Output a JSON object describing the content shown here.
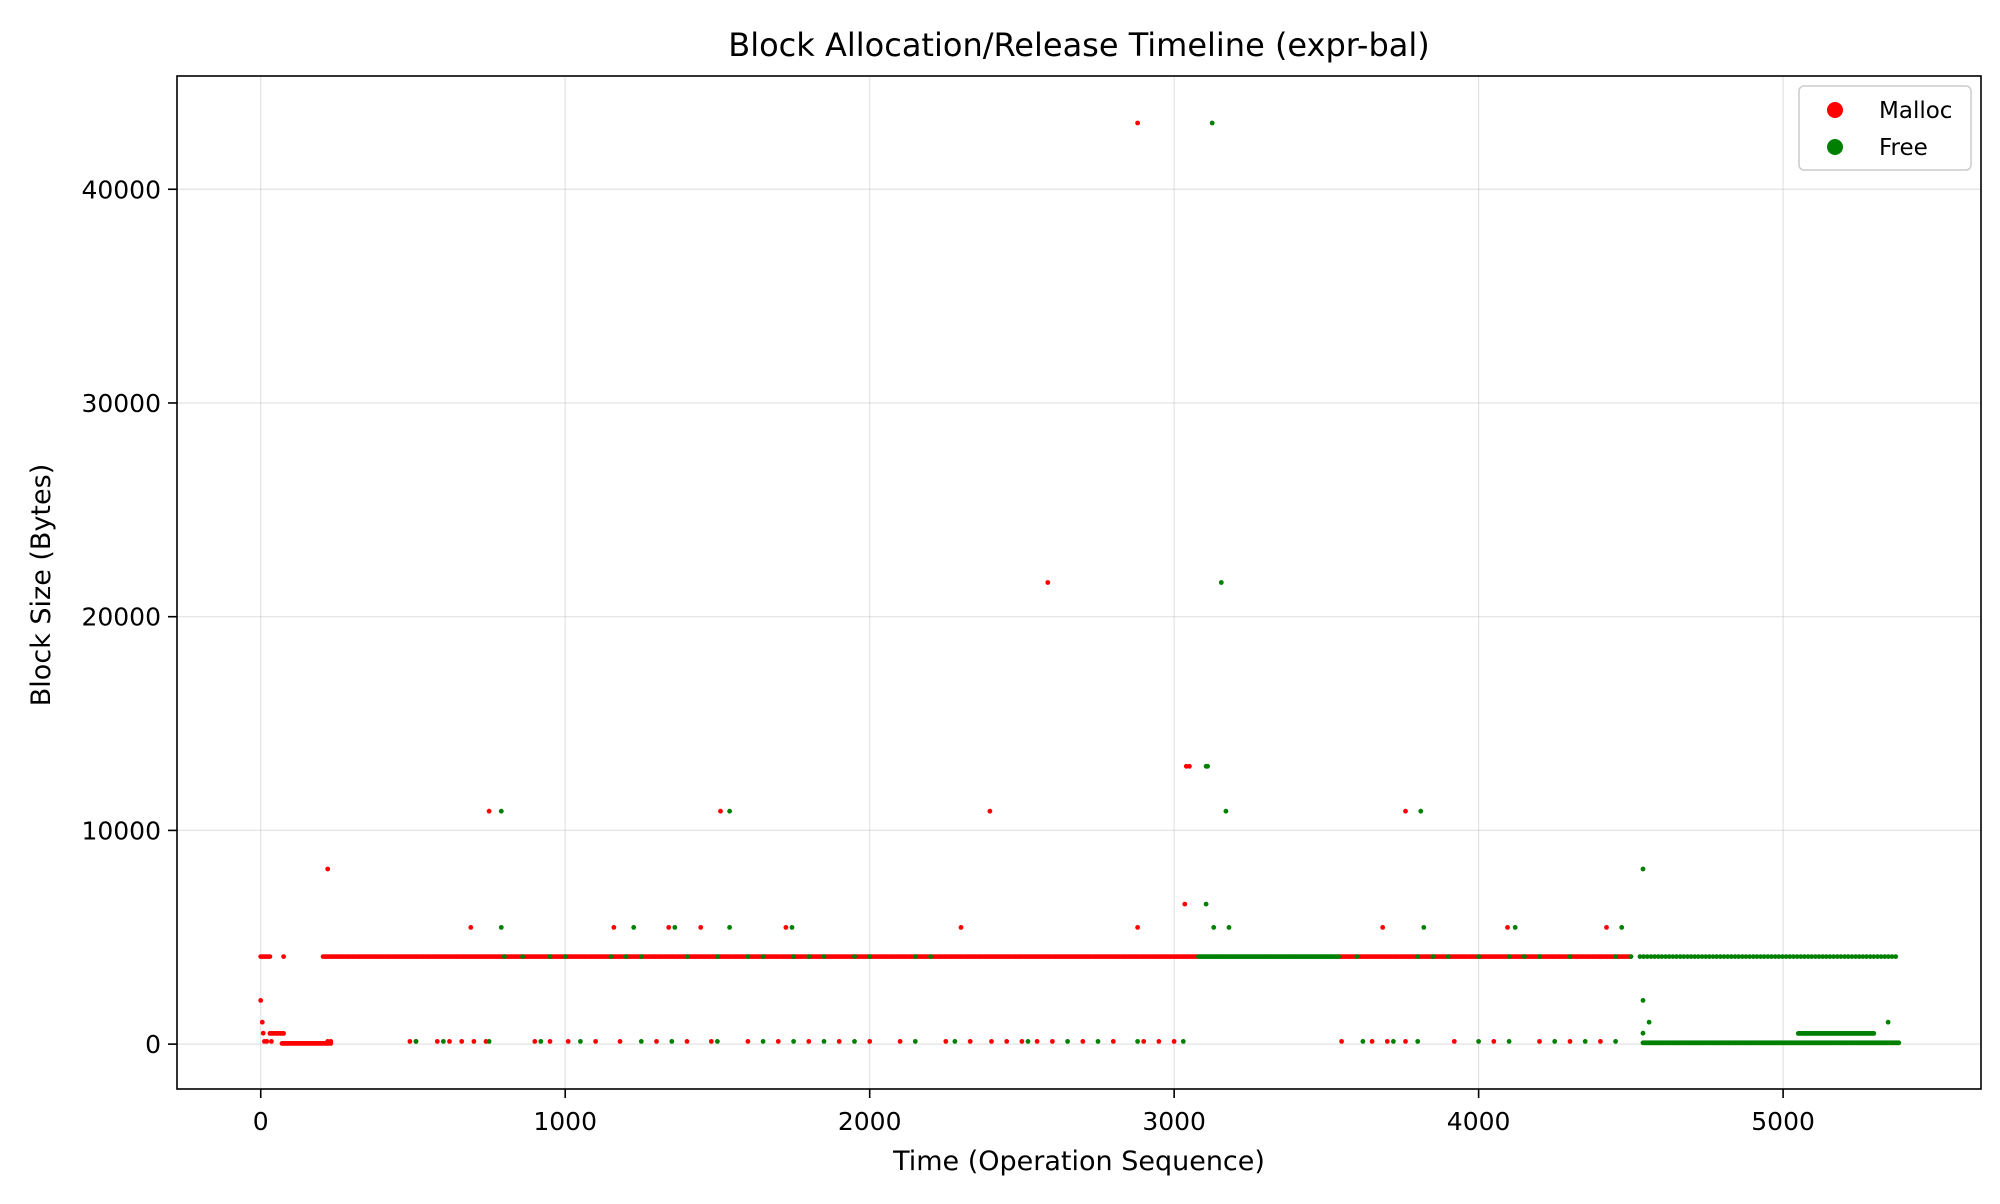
{
  "chart_data": {
    "type": "scatter",
    "title": "Block Allocation/Release Timeline (expr-bal)",
    "xlabel": "Time (Operation Sequence)",
    "ylabel": "Block Size (Bytes)",
    "xlim": [
      -275,
      5650
    ],
    "ylim": [
      -2100,
      45300
    ],
    "x_ticks": [
      0,
      1000,
      2000,
      3000,
      4000,
      5000
    ],
    "x_tick_labels": [
      "0",
      "1000",
      "2000",
      "3000",
      "4000",
      "5000"
    ],
    "y_ticks": [
      0,
      10000,
      20000,
      30000,
      40000
    ],
    "y_tick_labels": [
      "0",
      "10000",
      "20000",
      "30000",
      "40000"
    ],
    "grid": true,
    "legend_position": "top-right",
    "series": [
      {
        "name": "Malloc",
        "color": "#ff0000",
        "bands": [
          {
            "x_start": 0,
            "x_end": 30,
            "step": 6,
            "y": 4096
          },
          {
            "x_start": 205,
            "x_end": 3080,
            "step": 6,
            "y": 4096
          },
          {
            "x_start": 3540,
            "x_end": 4500,
            "step": 6,
            "y": 4096
          },
          {
            "x_start": 70,
            "x_end": 230,
            "step": 4,
            "y": 32
          },
          {
            "x_start": 30,
            "x_end": 75,
            "step": 5,
            "y": 500
          }
        ],
        "points": [
          [
            0,
            2048
          ],
          [
            5,
            1024
          ],
          [
            8,
            512
          ],
          [
            12,
            128
          ],
          [
            20,
            128
          ],
          [
            35,
            128
          ],
          [
            75,
            4096
          ],
          [
            220,
            8192
          ],
          [
            220,
            128
          ],
          [
            230,
            128
          ],
          [
            690,
            5460
          ],
          [
            750,
            10900
          ],
          [
            1160,
            5460
          ],
          [
            1340,
            5460
          ],
          [
            1445,
            5460
          ],
          [
            1510,
            10900
          ],
          [
            1725,
            5460
          ],
          [
            2300,
            5460
          ],
          [
            2395,
            10900
          ],
          [
            2585,
            21600
          ],
          [
            2880,
            43100
          ],
          [
            2880,
            5460
          ],
          [
            3035,
            6550
          ],
          [
            3040,
            13000
          ],
          [
            3050,
            13000
          ],
          [
            3685,
            5460
          ],
          [
            3760,
            10900
          ],
          [
            4095,
            5460
          ],
          [
            4420,
            5460
          ],
          [
            490,
            128
          ],
          [
            510,
            128
          ],
          [
            580,
            128
          ],
          [
            620,
            128
          ],
          [
            660,
            128
          ],
          [
            700,
            128
          ],
          [
            740,
            128
          ],
          [
            900,
            128
          ],
          [
            950,
            128
          ],
          [
            1010,
            128
          ],
          [
            1100,
            128
          ],
          [
            1180,
            128
          ],
          [
            1300,
            128
          ],
          [
            1400,
            128
          ],
          [
            1480,
            128
          ],
          [
            1600,
            128
          ],
          [
            1700,
            128
          ],
          [
            1800,
            128
          ],
          [
            1900,
            128
          ],
          [
            2000,
            128
          ],
          [
            2100,
            128
          ],
          [
            2250,
            128
          ],
          [
            2330,
            128
          ],
          [
            2400,
            128
          ],
          [
            2450,
            128
          ],
          [
            2500,
            128
          ],
          [
            2550,
            128
          ],
          [
            2600,
            128
          ],
          [
            2700,
            128
          ],
          [
            2800,
            128
          ],
          [
            2900,
            128
          ],
          [
            2950,
            128
          ],
          [
            3000,
            128
          ],
          [
            3550,
            128
          ],
          [
            3650,
            128
          ],
          [
            3700,
            128
          ],
          [
            3760,
            128
          ],
          [
            3920,
            128
          ],
          [
            4050,
            128
          ],
          [
            4200,
            128
          ],
          [
            4300,
            128
          ],
          [
            4400,
            128
          ]
        ]
      },
      {
        "name": "Free",
        "color": "#008000",
        "bands": [
          {
            "x_start": 3080,
            "x_end": 3540,
            "step": 5,
            "y": 4096
          },
          {
            "x_start": 4530,
            "x_end": 5380,
            "step": 12,
            "y": 4096
          },
          {
            "x_start": 4540,
            "x_end": 5380,
            "step": 4,
            "y": 64
          },
          {
            "x_start": 5050,
            "x_end": 5300,
            "step": 4,
            "y": 500
          }
        ],
        "points": [
          [
            790,
            10900
          ],
          [
            790,
            5460
          ],
          [
            1225,
            5460
          ],
          [
            1360,
            5460
          ],
          [
            1540,
            10900
          ],
          [
            1540,
            5460
          ],
          [
            1745,
            5460
          ],
          [
            3105,
            13000
          ],
          [
            3110,
            13000
          ],
          [
            3105,
            6550
          ],
          [
            3125,
            43100
          ],
          [
            3130,
            5460
          ],
          [
            3155,
            21600
          ],
          [
            3170,
            10900
          ],
          [
            3180,
            5460
          ],
          [
            3810,
            10900
          ],
          [
            3820,
            5460
          ],
          [
            4120,
            5460
          ],
          [
            4470,
            5460
          ],
          [
            4540,
            8192
          ],
          [
            4540,
            2048
          ],
          [
            4560,
            1024
          ],
          [
            4540,
            512
          ],
          [
            5345,
            1024
          ],
          [
            800,
            4096
          ],
          [
            860,
            4096
          ],
          [
            950,
            4096
          ],
          [
            1000,
            4096
          ],
          [
            1150,
            4096
          ],
          [
            1200,
            4096
          ],
          [
            1250,
            4096
          ],
          [
            1400,
            4096
          ],
          [
            1500,
            4096
          ],
          [
            1600,
            4096
          ],
          [
            1650,
            4096
          ],
          [
            1750,
            4096
          ],
          [
            1800,
            4096
          ],
          [
            1850,
            4096
          ],
          [
            1950,
            4096
          ],
          [
            2000,
            4096
          ],
          [
            2150,
            4096
          ],
          [
            2200,
            4096
          ],
          [
            3600,
            4096
          ],
          [
            3800,
            4096
          ],
          [
            3850,
            4096
          ],
          [
            3900,
            4096
          ],
          [
            4000,
            4096
          ],
          [
            4100,
            4096
          ],
          [
            4150,
            4096
          ],
          [
            4200,
            4096
          ],
          [
            4300,
            4096
          ],
          [
            4450,
            4096
          ],
          [
            4500,
            4096
          ],
          [
            510,
            128
          ],
          [
            600,
            128
          ],
          [
            750,
            128
          ],
          [
            920,
            128
          ],
          [
            1050,
            128
          ],
          [
            1250,
            128
          ],
          [
            1350,
            128
          ],
          [
            1500,
            128
          ],
          [
            1650,
            128
          ],
          [
            1750,
            128
          ],
          [
            1850,
            128
          ],
          [
            1950,
            128
          ],
          [
            2150,
            128
          ],
          [
            2280,
            128
          ],
          [
            2520,
            128
          ],
          [
            2650,
            128
          ],
          [
            2750,
            128
          ],
          [
            2880,
            128
          ],
          [
            3030,
            128
          ],
          [
            3620,
            128
          ],
          [
            3720,
            128
          ],
          [
            3800,
            128
          ],
          [
            4000,
            128
          ],
          [
            4100,
            128
          ],
          [
            4250,
            128
          ],
          [
            4350,
            128
          ],
          [
            4450,
            128
          ]
        ]
      }
    ]
  }
}
